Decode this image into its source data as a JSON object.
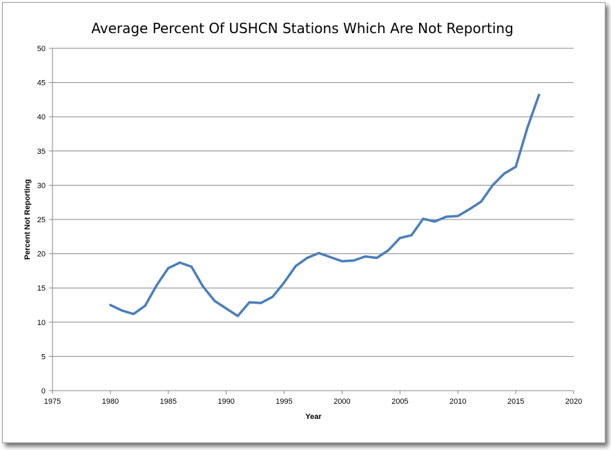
{
  "chart_data": {
    "type": "line",
    "title": "Average Percent Of USHCN Stations Which Are Not Reporting",
    "xlabel": "Year",
    "ylabel": "Percent Not Reporting",
    "xlim": [
      1975,
      2020
    ],
    "ylim": [
      0,
      50
    ],
    "xticks": [
      1975,
      1980,
      1985,
      1990,
      1995,
      2000,
      2005,
      2010,
      2015,
      2020
    ],
    "yticks": [
      0,
      5,
      10,
      15,
      20,
      25,
      30,
      35,
      40,
      45,
      50
    ],
    "grid": "horizontal",
    "legend": "none",
    "line_color": "#4a7ebb",
    "series": [
      {
        "x": [
          1980,
          1981,
          1982,
          1983,
          1984,
          1985,
          1986,
          1987,
          1988,
          1989,
          1990,
          1991,
          1992,
          1993,
          1994,
          1995,
          1996,
          1997,
          1998,
          1999,
          2000,
          2001,
          2002,
          2003,
          2004,
          2005,
          2006,
          2007,
          2008,
          2009,
          2010,
          2011,
          2012,
          2013,
          2014,
          2015,
          2016,
          2017
        ],
        "values": [
          12.5,
          11.7,
          11.2,
          12.4,
          15.4,
          17.9,
          18.7,
          18.1,
          15.2,
          13.1,
          12.0,
          10.9,
          12.9,
          12.8,
          13.7,
          15.8,
          18.2,
          19.4,
          20.1,
          19.5,
          18.9,
          19.0,
          19.6,
          19.4,
          20.5,
          22.3,
          22.7,
          25.1,
          24.7,
          25.4,
          25.5,
          26.5,
          27.6,
          30.0,
          31.7,
          32.7,
          38.4,
          43.2
        ]
      }
    ]
  }
}
